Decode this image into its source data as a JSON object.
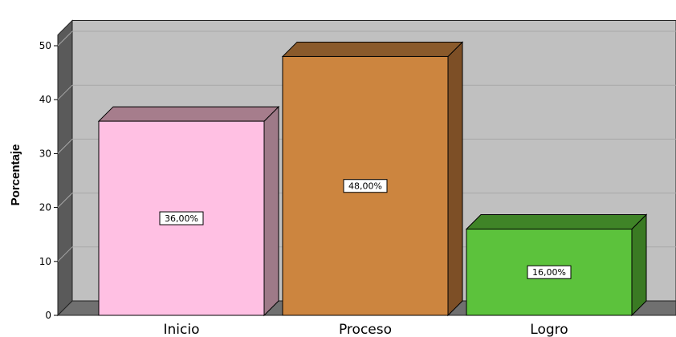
{
  "chart_data": {
    "type": "bar",
    "title": "",
    "xlabel": "",
    "ylabel": "Porcentaje",
    "categories": [
      "Inicio",
      "Proceso",
      "Logro"
    ],
    "values": [
      36,
      48,
      16
    ],
    "data_labels": [
      "36,00%",
      "48,00%",
      "16,00%"
    ],
    "yticks": [
      0,
      10,
      20,
      30,
      40,
      50
    ],
    "ylim": [
      0,
      52
    ],
    "grid": true,
    "style": "3d",
    "colors": {
      "bars": [
        "#ffc0e3",
        "#cc853f",
        "#5cc23c"
      ],
      "bar_sides": [
        "#9e7a88",
        "#7d4f26",
        "#3a7a23"
      ],
      "bar_tops": [
        "#a67d8c",
        "#8a5a2b",
        "#3f8427"
      ],
      "plot_back": "#c0c0c0",
      "floor": "#707070",
      "wall": "#5a5a5a",
      "grid": "#a8a8a8"
    }
  }
}
